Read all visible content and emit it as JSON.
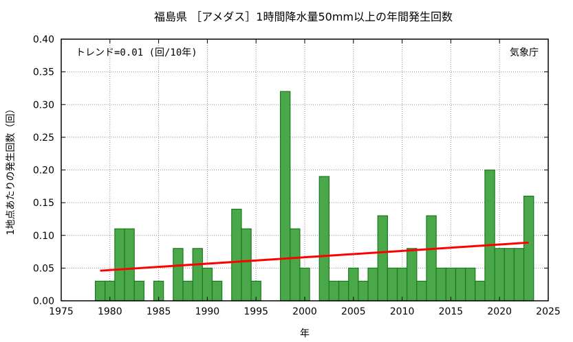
{
  "chart_data": {
    "type": "bar",
    "title": "福島県 ［アメダス］1時間降水量50mm以上の年間発生回数",
    "xlabel": "年",
    "ylabel": "1地点あたりの発生回数（回）",
    "xlim": [
      1975,
      2025
    ],
    "ylim": [
      0,
      0.4
    ],
    "xticks": [
      1975,
      1980,
      1985,
      1990,
      1995,
      2000,
      2005,
      2010,
      2015,
      2020,
      2025
    ],
    "yticks": [
      "0.00",
      "0.05",
      "0.10",
      "0.15",
      "0.20",
      "0.25",
      "0.30",
      "0.35",
      "0.40"
    ],
    "grid": true,
    "bar_color": "#4aa84a",
    "bar_edge_color": "#1a7a1a",
    "trend_color": "#ff0000",
    "trend_label": "トレンド=0.01 (回/10年)",
    "source": "気象庁",
    "years": [
      1979,
      1980,
      1981,
      1982,
      1983,
      1984,
      1985,
      1986,
      1987,
      1988,
      1989,
      1990,
      1991,
      1992,
      1993,
      1994,
      1995,
      1996,
      1997,
      1998,
      1999,
      2000,
      2001,
      2002,
      2003,
      2004,
      2005,
      2006,
      2007,
      2008,
      2009,
      2010,
      2011,
      2012,
      2013,
      2014,
      2015,
      2016,
      2017,
      2018,
      2019,
      2020,
      2021,
      2022,
      2023
    ],
    "values": [
      0.03,
      0.03,
      0.11,
      0.11,
      0.03,
      0,
      0.03,
      0,
      0.08,
      0.03,
      0.08,
      0.05,
      0.03,
      0,
      0.14,
      0.11,
      0.03,
      0,
      0,
      0.32,
      0.11,
      0.05,
      0,
      0.19,
      0.03,
      0.03,
      0.05,
      0.03,
      0.05,
      0.13,
      0.05,
      0.05,
      0.08,
      0.03,
      0.13,
      0.05,
      0.05,
      0.05,
      0.05,
      0.03,
      0.2,
      0.08,
      0.08,
      0.08,
      0.16
    ],
    "trend": {
      "x": [
        1979,
        2023
      ],
      "y": [
        0.046,
        0.089
      ]
    }
  }
}
